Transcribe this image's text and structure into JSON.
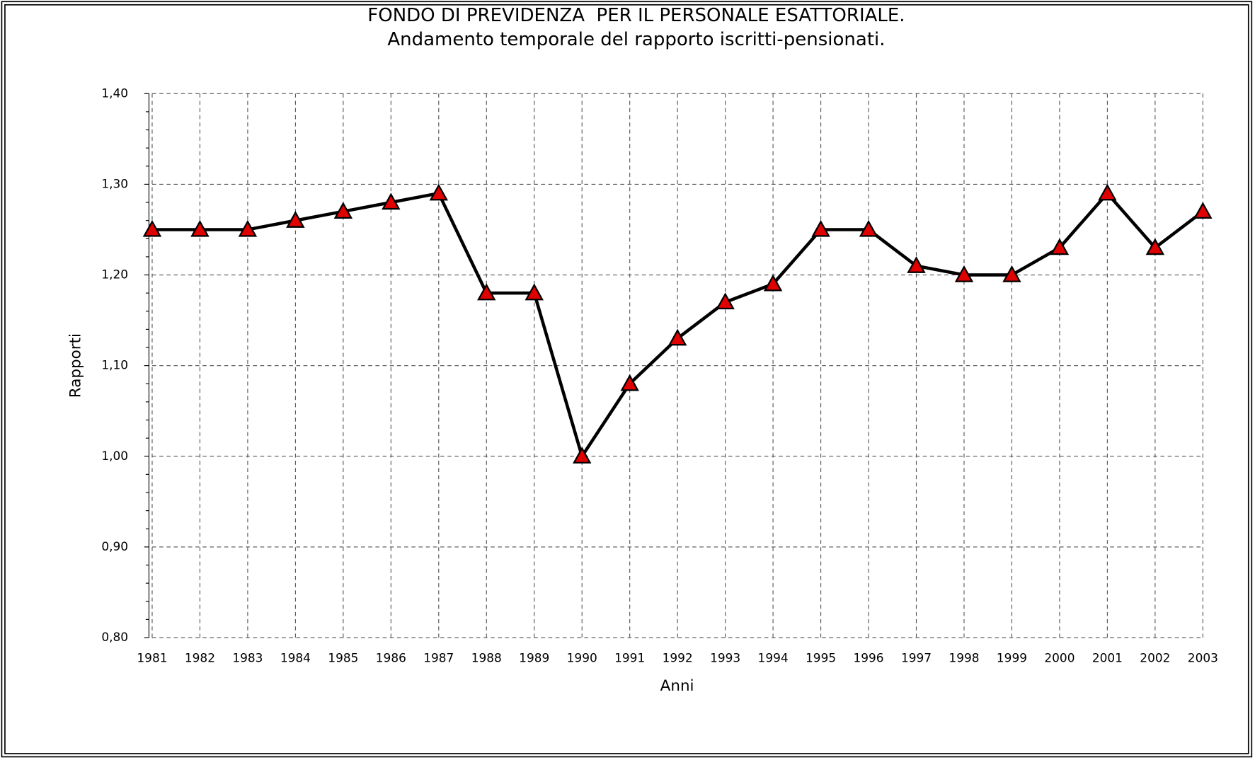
{
  "chart_data": {
    "type": "line",
    "title": "FONDO DI PREVIDENZA  PER IL PERSONALE ESATTORIALE.",
    "subtitle": "Andamento temporale del rapporto iscritti-pensionati.",
    "x_label": "Anni",
    "y_label": "Rapporti",
    "categories": [
      "1981",
      "1982",
      "1983",
      "1984",
      "1985",
      "1986",
      "1987",
      "1988",
      "1989",
      "1990",
      "1991",
      "1992",
      "1993",
      "1994",
      "1995",
      "1996",
      "1997",
      "1998",
      "1999",
      "2000",
      "2001",
      "2002",
      "2003"
    ],
    "series": [
      {
        "color": "#000000",
        "marker_color": "#e00000",
        "values": [
          1.25,
          1.25,
          1.25,
          1.26,
          1.27,
          1.28,
          1.29,
          1.18,
          1.18,
          1.0,
          1.08,
          1.13,
          1.17,
          1.19,
          1.25,
          1.25,
          1.21,
          1.2,
          1.2,
          1.23,
          1.29,
          1.23,
          1.27
        ]
      }
    ],
    "ylim": [
      0.8,
      1.4
    ],
    "yticks": [
      {
        "value": 0.8,
        "label": "0,80"
      },
      {
        "value": 0.9,
        "label": "0,90"
      },
      {
        "value": 1.0,
        "label": "1,00"
      },
      {
        "value": 1.1,
        "label": "1,10"
      },
      {
        "value": 1.2,
        "label": "1,20"
      },
      {
        "value": 1.3,
        "label": "1,30"
      },
      {
        "value": 1.4,
        "label": "1,40"
      }
    ],
    "grid": true
  }
}
